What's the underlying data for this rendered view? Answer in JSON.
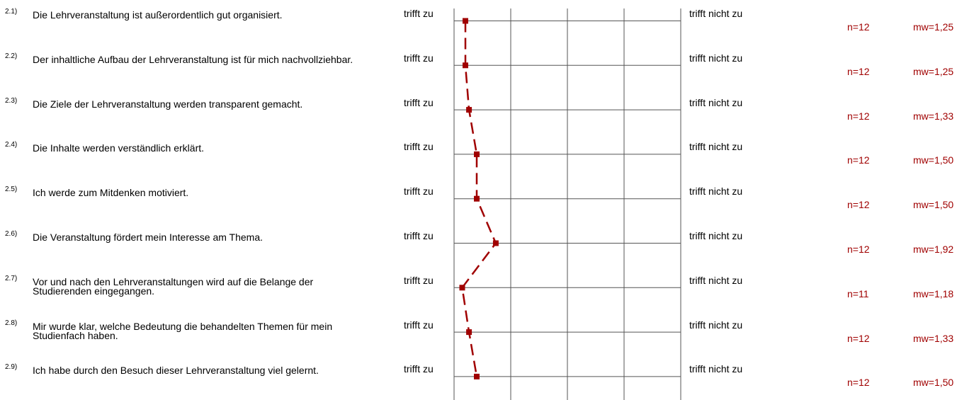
{
  "colors": {
    "series": "#a00000",
    "grid": "#555555",
    "text": "#000000",
    "stats": "#a00000"
  },
  "chart_data": {
    "type": "line",
    "orientation": "horizontal-profile",
    "scale_left_label": "trifft zu",
    "scale_right_label": "trifft nicht zu",
    "xlim": [
      1,
      6
    ],
    "items": [
      {
        "num": "2.1)",
        "question": "Die Lehrveranstaltung ist außerordentlich gut organisiert.",
        "n": "n=12",
        "mw": "mw=1,25",
        "value": 1.25
      },
      {
        "num": "2.2)",
        "question": "Der inhaltliche Aufbau der Lehrveranstaltung ist für mich nachvollziehbar.",
        "n": "n=12",
        "mw": "mw=1,25",
        "value": 1.25
      },
      {
        "num": "2.3)",
        "question": "Die Ziele der Lehrveranstaltung werden transparent gemacht.",
        "n": "n=12",
        "mw": "mw=1,33",
        "value": 1.33
      },
      {
        "num": "2.4)",
        "question": "Die Inhalte werden verständlich erklärt.",
        "n": "n=12",
        "mw": "mw=1,50",
        "value": 1.5
      },
      {
        "num": "2.5)",
        "question": "Ich werde zum Mitdenken motiviert.",
        "n": "n=12",
        "mw": "mw=1,50",
        "value": 1.5
      },
      {
        "num": "2.6)",
        "question": "Die Veranstaltung fördert mein Interesse am Thema.",
        "n": "n=12",
        "mw": "mw=1,92",
        "value": 1.92
      },
      {
        "num": "2.7)",
        "question": "Vor und nach den Lehrveranstaltungen wird auf die Belange der Studierenden eingegangen.",
        "n": "n=11",
        "mw": "mw=1,18",
        "value": 1.18
      },
      {
        "num": "2.8)",
        "question": "Mir wurde klar, welche Bedeutung die behandelten Themen für mein Studienfach haben.",
        "n": "n=12",
        "mw": "mw=1,33",
        "value": 1.33
      },
      {
        "num": "2.9)",
        "question": "Ich habe durch den Besuch dieser Lehrveranstaltung viel gelernt.",
        "n": "n=12",
        "mw": "mw=1,50",
        "value": 1.5
      }
    ]
  }
}
